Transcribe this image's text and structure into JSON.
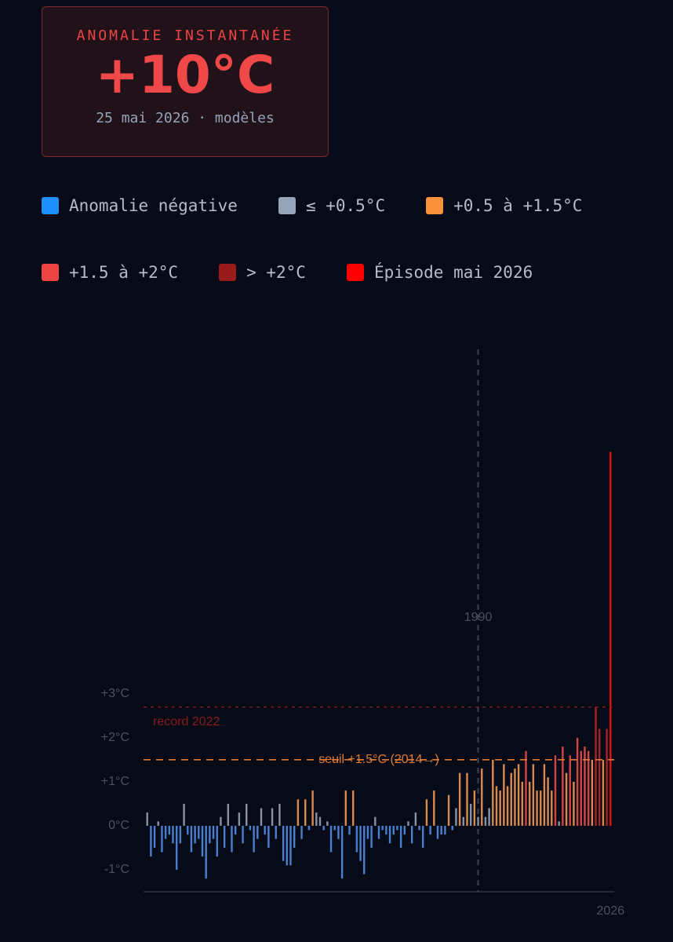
{
  "card": {
    "title": "ANOMALIE INSTANTANÉE",
    "value": "+10°C",
    "subtitle": "25 mai 2026 · modèles"
  },
  "chart_data": {
    "type": "bar",
    "series": [
      {
        "name": "Anomalie négative",
        "color": "#1e90ff",
        "bar_color": "#4a7fd0",
        "x": [
          1901,
          1902,
          1904,
          1905,
          1906,
          1907,
          1908,
          1909,
          1911,
          1912,
          1913,
          1914,
          1915,
          1916,
          1917,
          1918,
          1919,
          1921,
          1923,
          1924,
          1926,
          1928,
          1929,
          1930,
          1932,
          1933,
          1935,
          1937,
          1938,
          1939,
          1940,
          1942,
          1944,
          1948,
          1950,
          1951,
          1952,
          1953,
          1955,
          1957,
          1958,
          1959,
          1960,
          1961,
          1963,
          1964,
          1965,
          1966,
          1967,
          1968,
          1969,
          1970,
          1972,
          1974,
          1975,
          1977,
          1979,
          1980,
          1981,
          1983
        ],
        "values": [
          -0.7,
          -0.5,
          -0.6,
          -0.3,
          -0.2,
          -0.4,
          -1.0,
          -0.4,
          -0.2,
          -0.6,
          -0.4,
          -0.3,
          -0.7,
          -1.2,
          -0.4,
          -0.3,
          -0.7,
          -0.5,
          -0.6,
          -0.2,
          -0.4,
          -0.1,
          -0.6,
          -0.3,
          -0.2,
          -0.5,
          -0.3,
          -0.8,
          -0.9,
          -0.9,
          -0.5,
          -0.3,
          -0.1,
          -0.1,
          -0.6,
          -0.1,
          -0.3,
          -1.2,
          -0.2,
          -0.6,
          -0.8,
          -1.1,
          -0.3,
          -0.5,
          -0.3,
          -0.1,
          -0.2,
          -0.4,
          -0.2,
          -0.1,
          -0.5,
          -0.2,
          -0.4,
          -0.1,
          -0.5,
          -0.2,
          -0.3,
          -0.2,
          -0.2,
          -0.1
        ]
      },
      {
        "name": "≤ +0.5°C",
        "color": "#94a3b8",
        "bar_color": "#8893a5",
        "x": [
          1900,
          1903,
          1910,
          1920,
          1922,
          1925,
          1927,
          1931,
          1934,
          1936,
          1946,
          1947,
          1949,
          1962,
          1971,
          1973,
          1984,
          1986,
          1988,
          1990,
          1992,
          1993,
          2012
        ],
        "values": [
          0.3,
          0.1,
          0.5,
          0.2,
          0.5,
          0.3,
          0.5,
          0.4,
          0.4,
          0.5,
          0.3,
          0.2,
          0.1,
          0.2,
          0.1,
          0.3,
          0.4,
          0.2,
          0.5,
          0.2,
          0.2,
          0.4,
          0.1
        ]
      },
      {
        "name": "+0.5 à +1.5°C",
        "color": "#fb923c",
        "bar_color": "#d98a4f",
        "x": [
          1941,
          1943,
          1945,
          1954,
          1956,
          1976,
          1978,
          1982,
          1985,
          1987,
          1989,
          1991,
          1994,
          1995,
          1996,
          1997,
          1998,
          1999,
          2000,
          2001,
          2002,
          2004,
          2005,
          2006,
          2007,
          2008,
          2009,
          2010,
          2014,
          2016,
          2021,
          2024
        ],
        "values": [
          0.6,
          0.6,
          0.8,
          0.8,
          0.8,
          0.6,
          0.8,
          0.7,
          1.2,
          1.2,
          0.8,
          1.3,
          1.5,
          0.9,
          0.8,
          1.4,
          0.9,
          1.2,
          1.3,
          1.4,
          1.0,
          1.0,
          1.4,
          0.8,
          0.8,
          1.4,
          1.1,
          0.8,
          1.2,
          1.0,
          1.5,
          1.5
        ]
      },
      {
        "name": "+1.5 à +2°C",
        "color": "#ef4444",
        "bar_color": "#d24545",
        "x": [
          2003,
          2011,
          2013,
          2015,
          2017,
          2018,
          2019,
          2020
        ],
        "values": [
          1.7,
          1.6,
          1.8,
          1.6,
          2.0,
          1.7,
          1.8,
          1.7
        ]
      },
      {
        "name": "> +2°C",
        "color": "#991b1b",
        "bar_color": "#a82424",
        "x": [
          2022,
          2023,
          2025
        ],
        "values": [
          2.7,
          2.2,
          2.2
        ]
      },
      {
        "name": "Épisode mai 2026",
        "color": "#ff0000",
        "bar_color": "#e31212",
        "x": [
          2026
        ],
        "values": [
          8.5
        ]
      }
    ],
    "reference_lines": [
      {
        "value": 2.7,
        "label": "record 2022",
        "color": "#8b1c1c"
      },
      {
        "value": 1.5,
        "label": "seuil +1.5°C (2014→)",
        "color": "#e07a35"
      }
    ],
    "xlim": [
      1899,
      2027
    ],
    "xticks": [
      1990,
      2026
    ],
    "ylim": [
      -1.5,
      10.9
    ],
    "yticks": [
      {
        "value": -1,
        "label": "-1°C"
      },
      {
        "value": 0,
        "label": "0°C"
      },
      {
        "value": 1,
        "label": "+1°C"
      },
      {
        "value": 2,
        "label": "+2°C"
      },
      {
        "value": 3,
        "label": "+3°C"
      }
    ]
  }
}
